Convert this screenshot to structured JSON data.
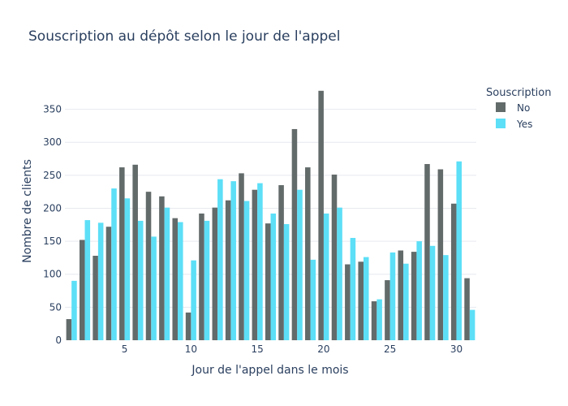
{
  "chart_data": {
    "type": "bar",
    "title": "Souscription au dépôt selon le jour de l'appel",
    "xlabel": "Jour de l'appel dans le mois",
    "ylabel": "Nombre de clients",
    "legend_title": "Souscription",
    "legend_position": "top-right",
    "x": [
      1,
      2,
      3,
      4,
      5,
      6,
      7,
      8,
      9,
      10,
      11,
      12,
      13,
      14,
      15,
      16,
      17,
      18,
      19,
      20,
      21,
      22,
      23,
      24,
      25,
      26,
      27,
      28,
      29,
      30,
      31
    ],
    "xticks": [
      5,
      10,
      15,
      20,
      25,
      30
    ],
    "yticks": [
      0,
      50,
      100,
      150,
      200,
      250,
      300,
      350
    ],
    "ylim": [
      0,
      395
    ],
    "grid": true,
    "series": [
      {
        "name": "No",
        "color": "#636a6a",
        "values": [
          32,
          152,
          128,
          172,
          262,
          266,
          225,
          218,
          185,
          42,
          192,
          201,
          212,
          253,
          228,
          177,
          235,
          320,
          262,
          378,
          251,
          115,
          119,
          59,
          91,
          136,
          134,
          267,
          259,
          207,
          94
        ]
      },
      {
        "name": "Yes",
        "color": "#5cdff7",
        "values": [
          90,
          182,
          178,
          230,
          215,
          181,
          157,
          201,
          179,
          121,
          181,
          244,
          241,
          211,
          238,
          192,
          176,
          228,
          122,
          192,
          201,
          155,
          126,
          62,
          133,
          116,
          150,
          143,
          129,
          271,
          46
        ]
      }
    ]
  }
}
